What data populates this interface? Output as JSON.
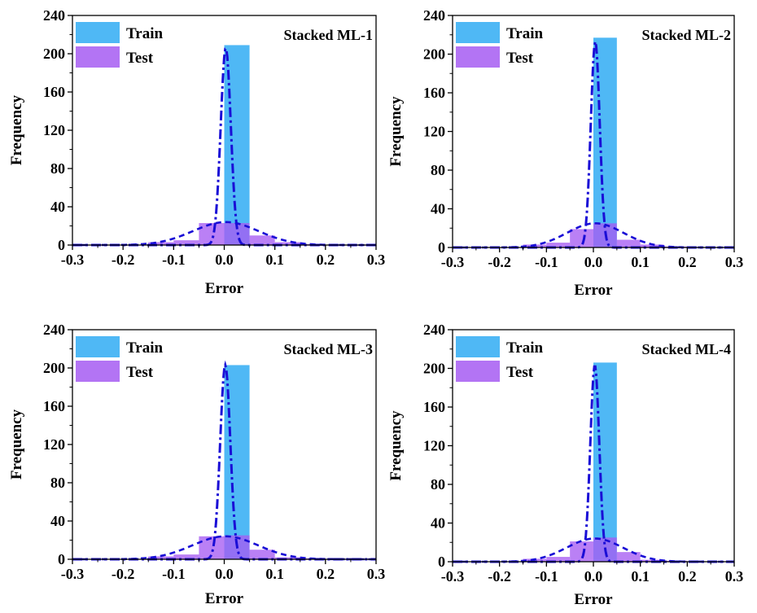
{
  "colors": {
    "train": "#4fb8f5",
    "test": "#a65cf2",
    "curve": "#1a0ed6",
    "axis": "#000000"
  },
  "chart_data": [
    {
      "type": "bar",
      "title": "Stacked ML-1",
      "xlabel": "Error",
      "ylabel": "Frequency",
      "xlim": [
        -0.3,
        0.3
      ],
      "ylim": [
        0,
        240
      ],
      "xticks": [
        "-0.3",
        "-0.2",
        "-0.1",
        "0.0",
        "0.1",
        "0.2",
        "0.3"
      ],
      "yticks": [
        "0",
        "40",
        "80",
        "120",
        "160",
        "200",
        "240"
      ],
      "legend": [
        "Train",
        "Test"
      ],
      "series": [
        {
          "name": "Train",
          "bins": [
            [
              0.0,
              0.05,
              209
            ]
          ]
        },
        {
          "name": "Test",
          "bins": [
            [
              -0.15,
              -0.1,
              3
            ],
            [
              -0.1,
              -0.05,
              5
            ],
            [
              -0.05,
              0.0,
              23
            ],
            [
              0.0,
              0.05,
              23
            ],
            [
              0.05,
              0.1,
              10
            ],
            [
              0.1,
              0.15,
              3
            ],
            [
              0.15,
              0.2,
              1
            ]
          ]
        }
      ],
      "fits": {
        "train_peak": 206,
        "train_sigma": 0.01,
        "test_peak": 24,
        "test_sigma": 0.065,
        "center": 0.003
      }
    },
    {
      "type": "bar",
      "title": "Stacked ML-2",
      "xlabel": "Error",
      "ylabel": "Frequency",
      "xlim": [
        -0.3,
        0.3
      ],
      "ylim": [
        0,
        240
      ],
      "xticks": [
        "-0.3",
        "-0.2",
        "-0.1",
        "0.0",
        "0.1",
        "0.2",
        "0.3"
      ],
      "yticks": [
        "0",
        "40",
        "80",
        "120",
        "160",
        "200",
        "240"
      ],
      "legend": [
        "Train",
        "Test"
      ],
      "series": [
        {
          "name": "Train",
          "bins": [
            [
              0.0,
              0.05,
              217
            ]
          ]
        },
        {
          "name": "Test",
          "bins": [
            [
              -0.15,
              -0.1,
              3
            ],
            [
              -0.1,
              -0.05,
              5
            ],
            [
              -0.05,
              0.0,
              19
            ],
            [
              0.0,
              0.05,
              25
            ],
            [
              0.05,
              0.1,
              8
            ],
            [
              0.1,
              0.15,
              3
            ],
            [
              0.15,
              0.2,
              1
            ]
          ]
        }
      ],
      "fits": {
        "train_peak": 213,
        "train_sigma": 0.0095,
        "test_peak": 25,
        "test_sigma": 0.06,
        "center": 0.004
      }
    },
    {
      "type": "bar",
      "title": "Stacked ML-3",
      "xlabel": "Error",
      "ylabel": "Frequency",
      "xlim": [
        -0.3,
        0.3
      ],
      "ylim": [
        0,
        240
      ],
      "xticks": [
        "-0.3",
        "-0.2",
        "-0.1",
        "0.0",
        "0.1",
        "0.2",
        "0.3"
      ],
      "yticks": [
        "0",
        "40",
        "80",
        "120",
        "160",
        "200",
        "240"
      ],
      "legend": [
        "Train",
        "Test"
      ],
      "series": [
        {
          "name": "Train",
          "bins": [
            [
              0.0,
              0.05,
              203
            ]
          ]
        },
        {
          "name": "Test",
          "bins": [
            [
              -0.15,
              -0.1,
              3
            ],
            [
              -0.1,
              -0.05,
              5
            ],
            [
              -0.05,
              0.0,
              24
            ],
            [
              0.0,
              0.05,
              25
            ],
            [
              0.05,
              0.1,
              10
            ],
            [
              0.1,
              0.15,
              2
            ],
            [
              0.15,
              0.2,
              1
            ]
          ]
        }
      ],
      "fits": {
        "train_peak": 203,
        "train_sigma": 0.01,
        "test_peak": 24,
        "test_sigma": 0.065,
        "center": 0.002
      }
    },
    {
      "type": "bar",
      "title": "Stacked ML-4",
      "xlabel": "Error",
      "ylabel": "Frequency",
      "xlim": [
        -0.3,
        0.3
      ],
      "ylim": [
        0,
        240
      ],
      "xticks": [
        "-0.3",
        "-0.2",
        "-0.1",
        "0.0",
        "0.1",
        "0.2",
        "0.3"
      ],
      "yticks": [
        "0",
        "40",
        "80",
        "120",
        "160",
        "200",
        "240"
      ],
      "legend": [
        "Train",
        "Test"
      ],
      "series": [
        {
          "name": "Train",
          "bins": [
            [
              0.0,
              0.05,
              206
            ]
          ]
        },
        {
          "name": "Test",
          "bins": [
            [
              -0.15,
              -0.1,
              3
            ],
            [
              -0.1,
              -0.05,
              5
            ],
            [
              -0.05,
              0.0,
              21
            ],
            [
              0.0,
              0.05,
              25
            ],
            [
              0.05,
              0.1,
              10
            ],
            [
              0.1,
              0.15,
              2
            ],
            [
              0.15,
              0.2,
              1
            ]
          ]
        }
      ],
      "fits": {
        "train_peak": 203,
        "train_sigma": 0.0095,
        "test_peak": 24,
        "test_sigma": 0.06,
        "center": 0.003
      }
    }
  ]
}
